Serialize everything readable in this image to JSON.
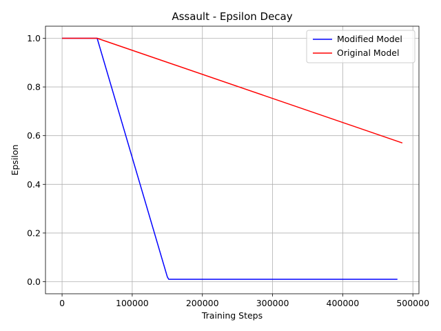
{
  "chart_data": {
    "type": "line",
    "title": "Assault - Epsilon Decay",
    "xlabel": "Training Steps",
    "ylabel": "Epsilon",
    "xlim": [
      -23650,
      508650
    ],
    "ylim": [
      -0.0495,
      1.0495
    ],
    "xticks": [
      0,
      100000,
      200000,
      300000,
      400000,
      500000
    ],
    "xtick_labels": [
      "0",
      "100000",
      "200000",
      "300000",
      "400000",
      "500000"
    ],
    "yticks": [
      0.0,
      0.2,
      0.4,
      0.6,
      0.8,
      1.0
    ],
    "ytick_labels": [
      "0.0",
      "0.2",
      "0.4",
      "0.6",
      "0.8",
      "1.0"
    ],
    "grid": true,
    "legend_position": "top-right",
    "series": [
      {
        "name": "Modified Model",
        "color": "#0000ff",
        "x": [
          0,
          50000,
          150000,
          152000,
          478000
        ],
        "y": [
          1.0,
          1.0,
          0.02,
          0.01,
          0.01
        ]
      },
      {
        "name": "Original Model",
        "color": "#ff0000",
        "x": [
          0,
          50000,
          485000
        ],
        "y": [
          1.0,
          1.0,
          0.57
        ]
      }
    ]
  }
}
